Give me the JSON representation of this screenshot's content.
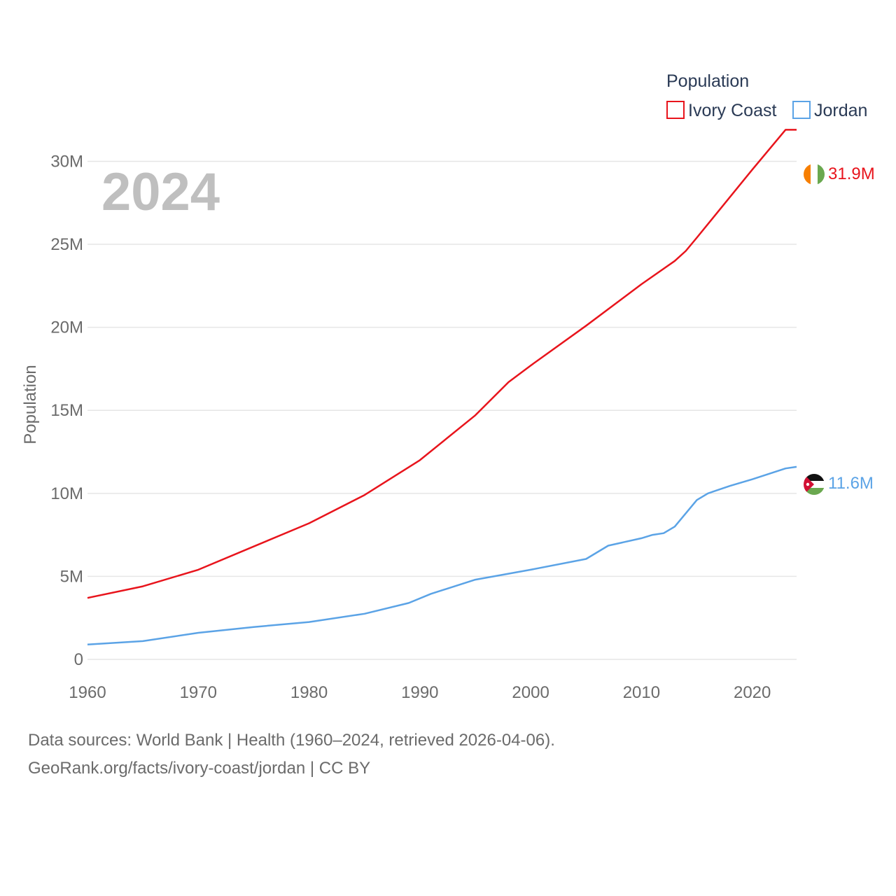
{
  "chart_data": {
    "type": "line",
    "year_label": "2024",
    "ylabel": "Population",
    "xlim": [
      1960,
      2024
    ],
    "ylim": [
      0,
      32000000
    ],
    "x_ticks": [
      1960,
      1970,
      1980,
      1990,
      2000,
      2010,
      2020
    ],
    "x_tick_labels": [
      "1960",
      "1970",
      "1980",
      "1990",
      "2000",
      "2010",
      "2020"
    ],
    "y_ticks": [
      0,
      5000000,
      10000000,
      15000000,
      20000000,
      25000000,
      30000000
    ],
    "y_tick_labels": [
      "0",
      "5M",
      "10M",
      "15M",
      "20M",
      "25M",
      "30M"
    ],
    "grid": true,
    "legend": {
      "title": "Population",
      "position": "top-right"
    },
    "series": [
      {
        "name": "Ivory Coast",
        "color": "#e8141c",
        "end_label": "31.9M",
        "flag": "ivory-coast-flag",
        "x": [
          1960,
          1965,
          1970,
          1975,
          1980,
          1985,
          1990,
          1995,
          1998,
          2000,
          2005,
          2010,
          2013,
          2014,
          2015,
          2020,
          2023,
          2024
        ],
        "values": [
          3700000,
          4400000,
          5400000,
          6800000,
          8200000,
          9900000,
          12000000,
          14700000,
          16700000,
          17700000,
          20100000,
          22600000,
          24000000,
          24600000,
          25400000,
          29500000,
          31900000,
          31900000
        ]
      },
      {
        "name": "Jordan",
        "color": "#5ba3e6",
        "end_label": "11.6M",
        "flag": "jordan-flag",
        "x": [
          1960,
          1965,
          1970,
          1975,
          1980,
          1985,
          1989,
          1991,
          1995,
          2000,
          2005,
          2007,
          2010,
          2011,
          2012,
          2013,
          2015,
          2016,
          2018,
          2020,
          2023,
          2024
        ],
        "values": [
          900000,
          1100000,
          1600000,
          1950000,
          2250000,
          2750000,
          3400000,
          3950000,
          4800000,
          5400000,
          6050000,
          6850000,
          7300000,
          7500000,
          7600000,
          8000000,
          9600000,
          10000000,
          10450000,
          10850000,
          11500000,
          11600000
        ]
      }
    ]
  },
  "footer": {
    "line1": "Data sources: World Bank | Health (1960–2024, retrieved 2026-04-06).",
    "line2": "GeoRank.org/facts/ivory-coast/jordan | CC BY"
  }
}
